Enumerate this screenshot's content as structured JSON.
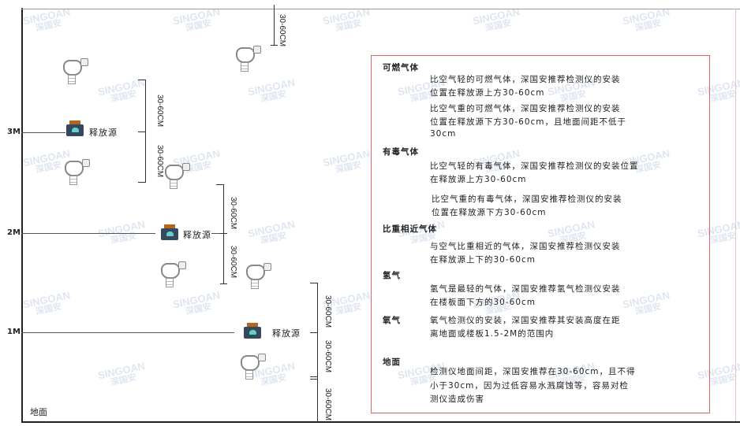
{
  "watermark": {
    "brand": "SINGOAN",
    "cn": "深国安"
  },
  "levels": {
    "l3": "3M",
    "l2": "2M",
    "l1": "1M",
    "floor": "地面"
  },
  "source_label": "释放源",
  "dimension_label": "30-60CM",
  "legend": {
    "combustible": {
      "title": "可燃气体",
      "lighter": [
        "比空气轻的可燃气体，深国安推荐检测仪的安装",
        "位置在释放源上方30-60cm"
      ],
      "heavier": [
        "比空气重的可燃气体，深国安推荐检测仪的安装",
        "位置在释放源下方30-60cm，且地面间距不低于",
        "30cm"
      ]
    },
    "toxic": {
      "title": "有毒气体",
      "lighter": [
        "比空气轻的有毒气体，深国安推荐检测仪的安装位置",
        "在释放源上方30-60cm"
      ],
      "heavier": [
        "比空气重的有毒气体，深国安推荐检测仪的安装",
        "位置在释放源下方30-60cm"
      ]
    },
    "similar": {
      "title": "比重相近气体",
      "lines": [
        "与空气比重相近的气体，深国安推荐检测仪安装",
        "在释放源上下的30-60cm"
      ]
    },
    "hydrogen": {
      "title": "氢气",
      "lines": [
        "氢气是最轻的气体，深国安推荐氢气检测仪安装",
        "在楼板面下方的30-60cm"
      ]
    },
    "oxygen": {
      "title": "氧气",
      "lines": [
        "氧气检测仪的安装，深国安推荐其安装高度在距",
        "离地面或楼板1.5-2M的范围内"
      ]
    },
    "ground": {
      "title": "地面",
      "lines": [
        "检测仪地面间距，深国安推荐在30-60cm，且不得",
        "小于30cm，因为过低容易水溅腐蚀等，容易对检",
        "测仪造成伤害"
      ]
    }
  },
  "colors": {
    "box_border": "#e06666",
    "source_body": "#34495e",
    "source_cap": "#b5651d"
  }
}
